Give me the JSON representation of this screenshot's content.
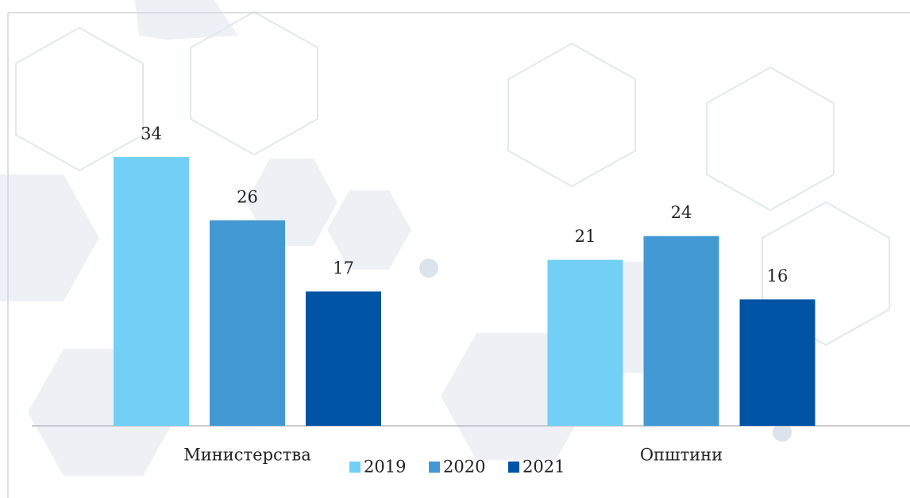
{
  "chart_data": {
    "type": "bar",
    "categories": [
      "Министерства",
      "Општини"
    ],
    "series": [
      {
        "name": "2019",
        "color": "#72cff5",
        "values": [
          34,
          21
        ]
      },
      {
        "name": "2020",
        "color": "#4399d4",
        "values": [
          26,
          24
        ]
      },
      {
        "name": "2021",
        "color": "#0054a6",
        "values": [
          17,
          16
        ]
      }
    ]
  }
}
